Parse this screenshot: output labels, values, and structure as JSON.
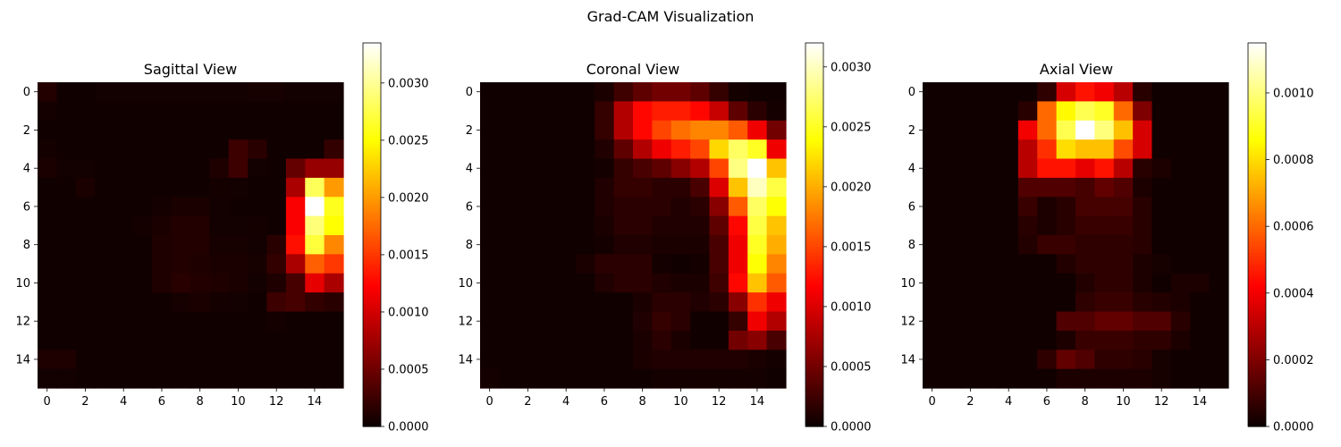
{
  "figure_title": "Grad-CAM Visualization",
  "chart_data": [
    {
      "type": "heatmap",
      "title": "Sagittal View",
      "colormap": "hot",
      "x_ticks": [
        0,
        2,
        4,
        6,
        8,
        10,
        12,
        14
      ],
      "y_ticks": [
        0,
        2,
        4,
        6,
        8,
        10,
        12,
        14
      ],
      "colorbar": {
        "min": 0,
        "max": 0.00335,
        "ticks": [
          "0.0000",
          "0.0005",
          "0.0010",
          "0.0015",
          "0.0020",
          "0.0025",
          "0.0030"
        ]
      },
      "values": [
        [
          0.00012,
          3e-05,
          3e-05,
          4e-05,
          4e-05,
          4e-05,
          4e-05,
          4e-05,
          4e-05,
          4e-05,
          4e-05,
          6e-05,
          6e-05,
          4e-05,
          4e-05,
          4e-05
        ],
        [
          5e-05,
          3e-05,
          3e-05,
          3e-05,
          3e-05,
          3e-05,
          3e-05,
          3e-05,
          3e-05,
          3e-05,
          3e-05,
          3e-05,
          3e-05,
          3e-05,
          3e-05,
          3e-05
        ],
        [
          3e-05,
          3e-05,
          3e-05,
          3e-05,
          3e-05,
          3e-05,
          3e-05,
          3e-05,
          3e-05,
          3e-05,
          3e-05,
          3e-05,
          3e-05,
          3e-05,
          3e-05,
          3e-05
        ],
        [
          5e-05,
          3e-05,
          3e-05,
          3e-05,
          3e-05,
          3e-05,
          3e-05,
          3e-05,
          3e-05,
          3e-05,
          0.00025,
          0.00015,
          3e-05,
          3e-05,
          3e-05,
          0.0002
        ],
        [
          8e-05,
          4e-05,
          4e-05,
          3e-05,
          3e-05,
          3e-05,
          3e-05,
          3e-05,
          3e-05,
          0.0001,
          0.00025,
          4e-05,
          3e-05,
          0.00045,
          0.0007,
          0.0007
        ],
        [
          3e-05,
          3e-05,
          8e-05,
          3e-05,
          3e-05,
          3e-05,
          3e-05,
          3e-05,
          3e-05,
          5e-05,
          4e-05,
          3e-05,
          3e-05,
          0.0008,
          0.0028,
          0.002
        ],
        [
          3e-05,
          3e-05,
          3e-05,
          3e-05,
          3e-05,
          3e-05,
          5e-05,
          8e-05,
          8e-05,
          4e-05,
          3e-05,
          3e-05,
          3e-05,
          0.0012,
          0.00335,
          0.0026
        ],
        [
          3e-05,
          3e-05,
          3e-05,
          3e-05,
          3e-05,
          5e-05,
          8e-05,
          0.00012,
          0.00012,
          4e-05,
          4e-05,
          5e-05,
          3e-05,
          0.0012,
          0.0029,
          0.0025
        ],
        [
          3e-05,
          3e-05,
          3e-05,
          3e-05,
          3e-05,
          3e-05,
          0.0001,
          0.00012,
          0.00012,
          6e-05,
          6e-05,
          4e-05,
          0.00015,
          0.0013,
          0.0027,
          0.0019
        ],
        [
          3e-05,
          3e-05,
          3e-05,
          3e-05,
          3e-05,
          3e-05,
          0.0001,
          0.00012,
          0.0001,
          8e-05,
          8e-05,
          6e-05,
          0.0002,
          0.0008,
          0.0017,
          0.0015
        ],
        [
          3e-05,
          3e-05,
          3e-05,
          3e-05,
          3e-05,
          3e-05,
          0.0001,
          0.00015,
          0.00012,
          0.0001,
          8e-05,
          4e-05,
          0.0001,
          0.0003,
          0.0011,
          0.0008
        ],
        [
          3e-05,
          3e-05,
          3e-05,
          3e-05,
          3e-05,
          3e-05,
          3e-05,
          6e-05,
          8e-05,
          5e-05,
          4e-05,
          3e-05,
          0.00025,
          0.0003,
          0.0002,
          0.00015
        ],
        [
          3e-05,
          3e-05,
          3e-05,
          3e-05,
          3e-05,
          3e-05,
          3e-05,
          3e-05,
          3e-05,
          3e-05,
          3e-05,
          3e-05,
          5e-05,
          3e-05,
          3e-05,
          3e-05
        ],
        [
          3e-05,
          3e-05,
          3e-05,
          3e-05,
          3e-05,
          3e-05,
          3e-05,
          3e-05,
          3e-05,
          3e-05,
          3e-05,
          3e-05,
          3e-05,
          3e-05,
          3e-05,
          3e-05
        ],
        [
          0.0001,
          0.0001,
          3e-05,
          3e-05,
          3e-05,
          3e-05,
          3e-05,
          3e-05,
          3e-05,
          3e-05,
          3e-05,
          3e-05,
          3e-05,
          3e-05,
          3e-05,
          3e-05
        ],
        [
          4e-05,
          4e-05,
          3e-05,
          3e-05,
          3e-05,
          3e-05,
          3e-05,
          3e-05,
          3e-05,
          3e-05,
          3e-05,
          3e-05,
          3e-05,
          3e-05,
          3e-05,
          3e-05
        ]
      ]
    },
    {
      "type": "heatmap",
      "title": "Coronal View",
      "colormap": "hot",
      "x_ticks": [
        0,
        2,
        4,
        6,
        8,
        10,
        12,
        14
      ],
      "y_ticks": [
        0,
        2,
        4,
        6,
        8,
        10,
        12,
        14
      ],
      "colorbar": {
        "min": 0,
        "max": 0.0032,
        "ticks": [
          "0.0000",
          "0.0005",
          "0.0010",
          "0.0015",
          "0.0020",
          "0.0025",
          "0.0030"
        ]
      },
      "values": [
        [
          3e-05,
          3e-05,
          3e-05,
          3e-05,
          3e-05,
          3e-05,
          8e-05,
          0.00025,
          0.0004,
          0.0005,
          0.0005,
          0.0004,
          0.0002,
          5e-05,
          3e-05,
          3e-05
        ],
        [
          3e-05,
          3e-05,
          3e-05,
          3e-05,
          3e-05,
          3e-05,
          0.0002,
          0.0008,
          0.0012,
          0.0013,
          0.0013,
          0.0012,
          0.0009,
          0.0004,
          0.00015,
          5e-05
        ],
        [
          3e-05,
          3e-05,
          3e-05,
          3e-05,
          3e-05,
          3e-05,
          0.0002,
          0.0008,
          0.0012,
          0.0015,
          0.0017,
          0.0018,
          0.0018,
          0.0016,
          0.0011,
          0.0005
        ],
        [
          3e-05,
          3e-05,
          3e-05,
          3e-05,
          3e-05,
          3e-05,
          0.0001,
          0.0004,
          0.0008,
          0.0011,
          0.0013,
          0.0015,
          0.0022,
          0.0027,
          0.0025,
          0.0011
        ],
        [
          3e-05,
          3e-05,
          3e-05,
          3e-05,
          3e-05,
          3e-05,
          5e-05,
          0.0002,
          0.0003,
          0.0004,
          0.0006,
          0.0008,
          0.0015,
          0.0028,
          0.0032,
          0.0021
        ],
        [
          3e-05,
          3e-05,
          3e-05,
          3e-05,
          3e-05,
          3e-05,
          0.0001,
          0.0002,
          0.0002,
          0.00015,
          0.00015,
          0.0003,
          0.001,
          0.0021,
          0.003,
          0.0026
        ],
        [
          3e-05,
          3e-05,
          3e-05,
          3e-05,
          3e-05,
          3e-05,
          0.0001,
          0.00015,
          0.00015,
          0.00015,
          0.0001,
          0.00015,
          0.0006,
          0.0016,
          0.0027,
          0.0024
        ],
        [
          3e-05,
          3e-05,
          3e-05,
          3e-05,
          3e-05,
          3e-05,
          8e-05,
          0.00015,
          0.00015,
          0.0001,
          0.0001,
          0.0001,
          0.0004,
          0.0012,
          0.0026,
          0.0021
        ],
        [
          3e-05,
          3e-05,
          3e-05,
          3e-05,
          3e-05,
          3e-05,
          5e-05,
          0.0001,
          0.0001,
          8e-05,
          8e-05,
          8e-05,
          0.0003,
          0.0011,
          0.0025,
          0.002
        ],
        [
          3e-05,
          3e-05,
          3e-05,
          3e-05,
          3e-05,
          8e-05,
          0.00015,
          0.00015,
          0.00015,
          5e-05,
          3e-05,
          5e-05,
          0.0003,
          0.0011,
          0.0024,
          0.0018
        ],
        [
          3e-05,
          3e-05,
          3e-05,
          3e-05,
          3e-05,
          3e-05,
          0.0001,
          0.00015,
          0.00015,
          0.0001,
          8e-05,
          8e-05,
          0.00025,
          0.0012,
          0.0021,
          0.0016
        ],
        [
          3e-05,
          3e-05,
          3e-05,
          3e-05,
          3e-05,
          3e-05,
          3e-05,
          3e-05,
          8e-05,
          0.00015,
          0.00015,
          0.0001,
          0.00015,
          0.0006,
          0.0014,
          0.0011
        ],
        [
          3e-05,
          3e-05,
          3e-05,
          3e-05,
          3e-05,
          3e-05,
          3e-05,
          3e-05,
          0.0001,
          0.0002,
          0.00015,
          3e-05,
          3e-05,
          0.0002,
          0.0011,
          0.0008
        ],
        [
          3e-05,
          3e-05,
          3e-05,
          3e-05,
          3e-05,
          3e-05,
          3e-05,
          3e-05,
          8e-05,
          0.00015,
          8e-05,
          3e-05,
          3e-05,
          0.0005,
          0.0006,
          0.0003
        ],
        [
          3e-05,
          3e-05,
          3e-05,
          3e-05,
          3e-05,
          3e-05,
          3e-05,
          3e-05,
          8e-05,
          0.0001,
          0.0001,
          0.0001,
          0.0001,
          0.0001,
          8e-05,
          5e-05
        ],
        [
          5e-05,
          3e-05,
          3e-05,
          3e-05,
          3e-05,
          3e-05,
          3e-05,
          3e-05,
          3e-05,
          5e-05,
          5e-05,
          5e-05,
          5e-05,
          5e-05,
          5e-05,
          3e-05
        ]
      ]
    },
    {
      "type": "heatmap",
      "title": "Axial View",
      "colormap": "hot",
      "x_ticks": [
        0,
        2,
        4,
        6,
        8,
        10,
        12,
        14
      ],
      "y_ticks": [
        0,
        2,
        4,
        6,
        8,
        10,
        12,
        14
      ],
      "colorbar": {
        "min": 0,
        "max": 0.00115,
        "ticks": [
          "0.0000",
          "0.0002",
          "0.0004",
          "0.0006",
          "0.0008",
          "0.0010"
        ]
      },
      "values": [
        [
          1e-05,
          1e-05,
          1e-05,
          1e-05,
          1e-05,
          1e-05,
          6e-05,
          0.00035,
          0.00045,
          0.0004,
          0.0003,
          5e-05,
          1e-05,
          1e-05,
          1e-05,
          1e-05
        ],
        [
          1e-05,
          1e-05,
          1e-05,
          1e-05,
          1e-05,
          5e-05,
          0.0006,
          0.00085,
          0.00095,
          0.0009,
          0.0006,
          0.0002,
          1e-05,
          1e-05,
          1e-05,
          1e-05
        ],
        [
          1e-05,
          1e-05,
          1e-05,
          1e-05,
          1e-05,
          0.0004,
          0.0006,
          0.00095,
          0.00115,
          0.001,
          0.00075,
          0.00035,
          1e-05,
          1e-05,
          1e-05,
          1e-05
        ],
        [
          1e-05,
          1e-05,
          1e-05,
          1e-05,
          1e-05,
          0.0003,
          0.0005,
          0.0008,
          0.00075,
          0.00075,
          0.00055,
          0.00035,
          1e-05,
          1e-05,
          1e-05,
          1e-05
        ],
        [
          1e-05,
          1e-05,
          1e-05,
          1e-05,
          1e-05,
          0.0003,
          0.00045,
          0.00045,
          0.00038,
          0.00045,
          0.0003,
          5e-05,
          3e-05,
          1e-05,
          1e-05,
          1e-05
        ],
        [
          1e-05,
          1e-05,
          1e-05,
          1e-05,
          1e-05,
          0.00012,
          0.00012,
          0.00012,
          0.0001,
          0.00015,
          0.00012,
          3e-05,
          1e-05,
          1e-05,
          1e-05,
          1e-05
        ],
        [
          1e-05,
          1e-05,
          1e-05,
          1e-05,
          1e-05,
          8e-05,
          3e-05,
          5e-05,
          0.0001,
          0.0001,
          0.0001,
          5e-05,
          1e-05,
          1e-05,
          1e-05,
          1e-05
        ],
        [
          1e-05,
          1e-05,
          1e-05,
          1e-05,
          1e-05,
          5e-05,
          3e-05,
          5e-05,
          8e-05,
          8e-05,
          8e-05,
          5e-05,
          1e-05,
          1e-05,
          1e-05,
          1e-05
        ],
        [
          1e-05,
          1e-05,
          1e-05,
          1e-05,
          1e-05,
          4e-05,
          8e-05,
          8e-05,
          6e-05,
          6e-05,
          6e-05,
          5e-05,
          1e-05,
          1e-05,
          1e-05,
          1e-05
        ],
        [
          1e-05,
          1e-05,
          1e-05,
          1e-05,
          1e-05,
          1e-05,
          1e-05,
          4e-05,
          6e-05,
          6e-05,
          6e-05,
          3e-05,
          2e-05,
          1e-05,
          1e-05,
          1e-05
        ],
        [
          1e-05,
          1e-05,
          1e-05,
          1e-05,
          1e-05,
          1e-05,
          1e-05,
          1e-05,
          4e-05,
          6e-05,
          6e-05,
          3e-05,
          1e-05,
          3e-05,
          3e-05,
          1e-05
        ],
        [
          1e-05,
          1e-05,
          1e-05,
          1e-05,
          1e-05,
          1e-05,
          1e-05,
          1e-05,
          6e-05,
          8e-05,
          8e-05,
          5e-05,
          4e-05,
          3e-05,
          1e-05,
          1e-05
        ],
        [
          1e-05,
          1e-05,
          1e-05,
          1e-05,
          1e-05,
          1e-05,
          1e-05,
          0.00012,
          0.00012,
          0.00015,
          0.00015,
          0.00012,
          0.00012,
          5e-05,
          1e-05,
          1e-05
        ],
        [
          1e-05,
          1e-05,
          1e-05,
          1e-05,
          1e-05,
          1e-05,
          1e-05,
          3e-05,
          8e-05,
          8e-05,
          8e-05,
          6e-05,
          6e-05,
          3e-05,
          1e-05,
          1e-05
        ],
        [
          1e-05,
          1e-05,
          1e-05,
          1e-05,
          1e-05,
          1e-05,
          6e-05,
          0.00015,
          0.00012,
          6e-05,
          6e-05,
          5e-05,
          2e-05,
          1e-05,
          1e-05,
          1e-05
        ],
        [
          1e-05,
          1e-05,
          1e-05,
          1e-05,
          1e-05,
          1e-05,
          1e-05,
          3e-05,
          3e-05,
          3e-05,
          3e-05,
          3e-05,
          2e-05,
          1e-05,
          1e-05,
          1e-05
        ]
      ]
    }
  ]
}
